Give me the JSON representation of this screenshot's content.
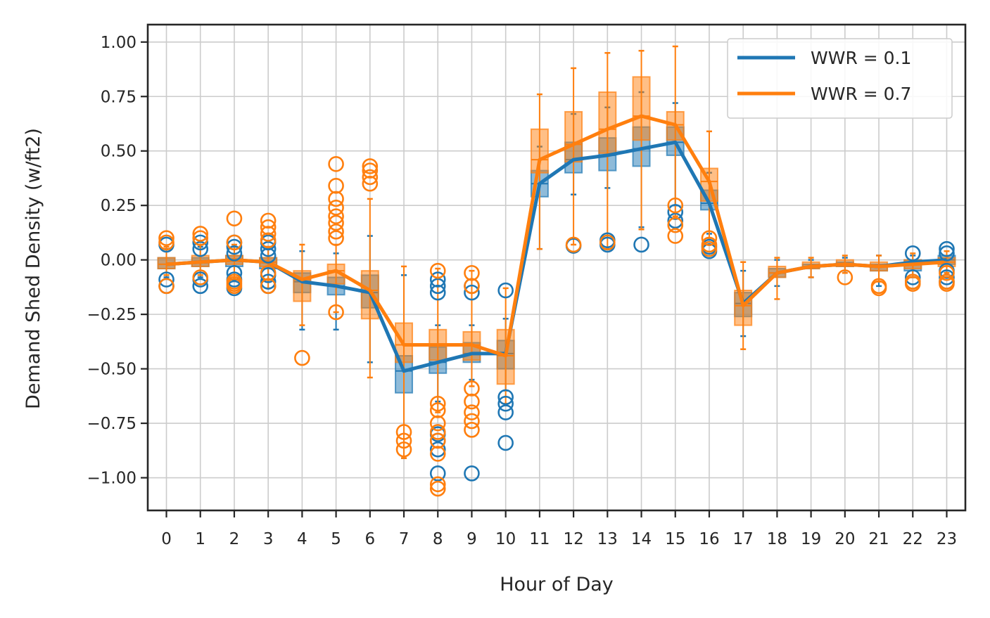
{
  "chart_data": {
    "type": "line",
    "title": "",
    "xlabel": "Hour of Day",
    "ylabel": "Demand Shed Density (w/ft2)",
    "x": [
      0,
      1,
      2,
      3,
      4,
      5,
      6,
      7,
      8,
      9,
      10,
      11,
      12,
      13,
      14,
      15,
      16,
      17,
      18,
      19,
      20,
      21,
      22,
      23
    ],
    "xlim": [
      -0.55,
      23.55
    ],
    "ylim": [
      -1.15,
      1.08
    ],
    "yticks": [
      1.0,
      0.75,
      0.5,
      0.25,
      0.0,
      -0.25,
      -0.5,
      -0.75,
      -1.0
    ],
    "ytick_labels": [
      "1.00",
      "0.75",
      "0.50",
      "0.25",
      "0.00",
      "−0.25",
      "−0.50",
      "−0.75",
      "−1.00"
    ],
    "grid": true,
    "legend_position": "top-right",
    "series": [
      {
        "name": "WWR = 0.1",
        "color": "#1f77b4",
        "values": [
          -0.02,
          -0.01,
          0.0,
          -0.01,
          -0.1,
          -0.12,
          -0.15,
          -0.51,
          -0.47,
          -0.43,
          -0.43,
          0.35,
          0.46,
          0.48,
          0.51,
          0.54,
          0.26,
          -0.2,
          -0.06,
          -0.03,
          -0.02,
          -0.03,
          -0.01,
          0.0
        ],
        "box_q1": [
          -0.04,
          -0.03,
          -0.03,
          -0.04,
          -0.15,
          -0.16,
          -0.22,
          -0.61,
          -0.52,
          -0.47,
          -0.5,
          0.29,
          0.4,
          0.41,
          0.43,
          0.48,
          0.23,
          -0.26,
          -0.08,
          -0.04,
          -0.03,
          -0.05,
          -0.05,
          -0.02
        ],
        "box_q3": [
          0.01,
          0.01,
          0.02,
          0.01,
          -0.06,
          -0.08,
          -0.07,
          -0.44,
          -0.4,
          -0.38,
          -0.37,
          0.41,
          0.54,
          0.56,
          0.61,
          0.61,
          0.32,
          -0.15,
          -0.04,
          -0.02,
          -0.01,
          -0.02,
          0.0,
          0.02
        ],
        "whisker_low": [
          -0.08,
          -0.08,
          -0.09,
          -0.09,
          -0.32,
          -0.32,
          -0.47,
          -0.91,
          -0.65,
          -0.55,
          -0.6,
          0.05,
          0.3,
          0.33,
          0.15,
          0.25,
          0.12,
          -0.35,
          -0.12,
          -0.08,
          -0.05,
          -0.12,
          -0.08,
          -0.05
        ],
        "whisker_high": [
          0.05,
          0.06,
          0.06,
          0.06,
          0.04,
          0.03,
          0.11,
          -0.07,
          -0.3,
          -0.3,
          -0.27,
          0.52,
          0.67,
          0.7,
          0.77,
          0.72,
          0.4,
          -0.05,
          0.0,
          0.0,
          0.01,
          0.02,
          0.02,
          0.04
        ],
        "outliers": [
          [
            -0.09,
            -0.12,
            0.07
          ],
          [
            0.08,
            0.05,
            -0.09,
            -0.12
          ],
          [
            0.08,
            0.06,
            0.03,
            -0.06,
            -0.09,
            -0.13
          ],
          [
            0.08,
            0.05,
            0.02,
            -0.07,
            -0.1,
            -0.12
          ],
          [],
          [],
          [],
          [],
          [
            -0.09,
            -0.12,
            -0.15,
            -0.8,
            -0.83,
            -0.87,
            -0.98
          ],
          [
            -0.12,
            -0.15,
            -0.98
          ],
          [
            -0.14,
            -0.63,
            -0.66,
            -0.7,
            -0.84
          ],
          [],
          [
            0.065
          ],
          [
            0.09,
            0.07
          ],
          [
            0.07
          ],
          [
            0.22,
            0.18
          ],
          [
            0.06,
            0.04
          ],
          [],
          [],
          [],
          [],
          [],
          [
            0.03,
            -0.08,
            -0.1
          ],
          [
            0.05,
            0.03,
            -0.05,
            -0.08,
            -0.1
          ]
        ]
      },
      {
        "name": "WWR = 0.7",
        "color": "#ff7f0e",
        "values": [
          -0.02,
          -0.01,
          0.0,
          -0.01,
          -0.09,
          -0.05,
          -0.14,
          -0.39,
          -0.39,
          -0.39,
          -0.44,
          0.46,
          0.53,
          0.6,
          0.66,
          0.62,
          0.36,
          -0.21,
          -0.06,
          -0.03,
          -0.02,
          -0.03,
          -0.02,
          -0.01
        ],
        "box_q1": [
          -0.04,
          -0.03,
          -0.02,
          -0.03,
          -0.19,
          -0.11,
          -0.27,
          -0.47,
          -0.46,
          -0.46,
          -0.57,
          0.4,
          0.45,
          0.49,
          0.55,
          0.55,
          0.27,
          -0.3,
          -0.08,
          -0.04,
          -0.03,
          -0.05,
          -0.04,
          -0.03
        ],
        "box_q3": [
          0.01,
          0.02,
          0.02,
          0.01,
          -0.05,
          -0.02,
          -0.05,
          -0.29,
          -0.32,
          -0.33,
          -0.32,
          0.6,
          0.68,
          0.77,
          0.84,
          0.68,
          0.42,
          -0.14,
          -0.03,
          -0.01,
          0.0,
          -0.01,
          0.0,
          0.01
        ],
        "whisker_low": [
          -0.07,
          -0.07,
          -0.08,
          -0.13,
          -0.3,
          -0.24,
          -0.54,
          -0.91,
          -0.7,
          -0.58,
          -0.66,
          0.05,
          0.07,
          0.05,
          0.14,
          0.2,
          0.1,
          -0.41,
          -0.18,
          -0.08,
          -0.06,
          -0.1,
          -0.08,
          -0.06
        ],
        "whisker_high": [
          0.06,
          0.07,
          0.07,
          0.06,
          0.07,
          0.07,
          0.28,
          -0.03,
          -0.04,
          -0.05,
          -0.13,
          0.76,
          0.88,
          0.95,
          0.96,
          0.98,
          0.59,
          -0.01,
          0.01,
          0.01,
          0.02,
          0.02,
          0.03,
          0.04
        ],
        "outliers": [
          [
            0.1,
            0.08,
            -0.12
          ],
          [
            0.12,
            0.1,
            -0.08
          ],
          [
            0.19,
            0.08,
            -0.1,
            -0.11,
            -0.12
          ],
          [
            0.18,
            0.15,
            0.12,
            0.09,
            -0.06,
            -0.12
          ],
          [
            -0.45
          ],
          [
            0.44,
            0.34,
            0.28,
            0.24,
            0.2,
            0.17,
            0.13,
            0.1,
            -0.24
          ],
          [
            0.43,
            0.41,
            0.38,
            0.35
          ],
          [
            -0.79,
            -0.83,
            -0.87
          ],
          [
            -0.05,
            -0.66,
            -0.69,
            -0.75,
            -0.79,
            -0.83,
            -0.89,
            -1.03,
            -1.05
          ],
          [
            -0.06,
            -0.12,
            -0.59,
            -0.65,
            -0.7,
            -0.74,
            -0.78
          ],
          [],
          [],
          [
            0.07
          ],
          [
            0.08
          ],
          [],
          [
            0.25,
            0.16,
            0.11
          ],
          [
            0.1,
            0.07,
            0.05
          ],
          [],
          [],
          [],
          [
            -0.08
          ],
          [
            -0.12,
            -0.13
          ],
          [
            -0.1,
            -0.11
          ],
          [
            -0.06,
            -0.1,
            -0.11
          ]
        ]
      }
    ]
  }
}
